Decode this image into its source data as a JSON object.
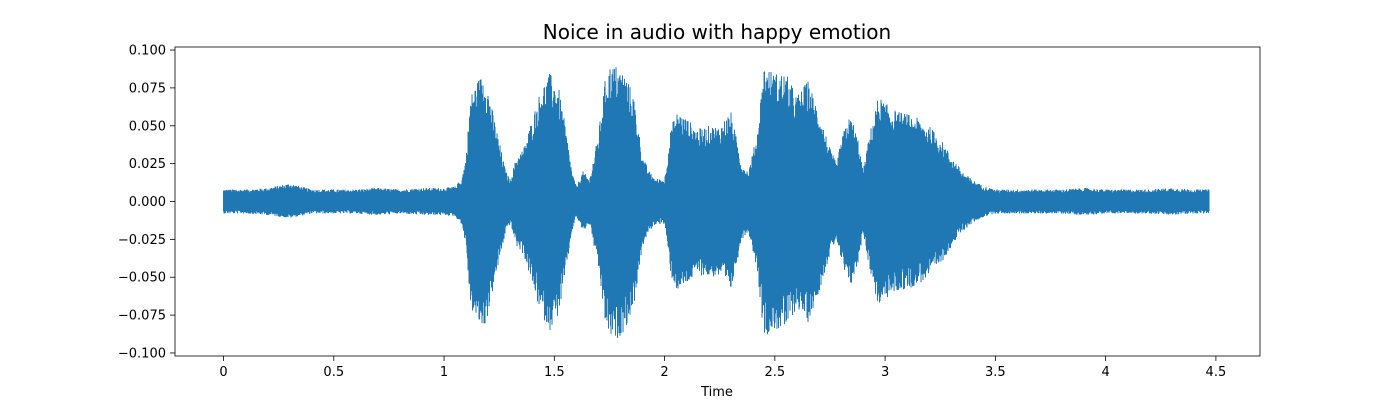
{
  "chart_data": {
    "type": "area",
    "title": "Noice in audio with happy emotion",
    "xlabel": "Time",
    "ylabel": "",
    "xlim": [
      -0.22,
      4.7
    ],
    "ylim": [
      -0.102,
      0.102
    ],
    "xticks": [
      0,
      0.5,
      1,
      1.5,
      2,
      2.5,
      3,
      3.5,
      4,
      4.5
    ],
    "xtick_labels": [
      "0",
      "0.5",
      "1",
      "1.5",
      "2",
      "2.5",
      "3",
      "3.5",
      "4",
      "4.5"
    ],
    "yticks": [
      0.1,
      0.075,
      0.05,
      0.025,
      0.0,
      -0.025,
      -0.05,
      -0.075,
      -0.1
    ],
    "ytick_labels": [
      "0.100",
      "0.075",
      "0.050",
      "0.025",
      "0.000",
      "−0.025",
      "−0.050",
      "−0.075",
      "−0.100"
    ],
    "grid": false,
    "legend": "none",
    "series": [
      {
        "color": "#1f77b4",
        "envelope": {
          "x": [
            0.0,
            0.1,
            0.2,
            0.3,
            0.4,
            0.5,
            0.6,
            0.7,
            0.8,
            0.9,
            1.0,
            1.05,
            1.08,
            1.1,
            1.12,
            1.15,
            1.18,
            1.2,
            1.22,
            1.25,
            1.28,
            1.3,
            1.33,
            1.36,
            1.4,
            1.44,
            1.48,
            1.52,
            1.55,
            1.58,
            1.6,
            1.63,
            1.66,
            1.7,
            1.73,
            1.75,
            1.78,
            1.82,
            1.86,
            1.9,
            1.93,
            1.96,
            2.0,
            2.03,
            2.06,
            2.1,
            2.15,
            2.2,
            2.25,
            2.3,
            2.35,
            2.38,
            2.42,
            2.45,
            2.5,
            2.55,
            2.6,
            2.65,
            2.7,
            2.73,
            2.75,
            2.78,
            2.8,
            2.83,
            2.85,
            2.88,
            2.9,
            2.93,
            2.97,
            3.0,
            3.05,
            3.1,
            3.15,
            3.2,
            3.25,
            3.3,
            3.35,
            3.4,
            3.45,
            3.5,
            3.6,
            3.7,
            3.8,
            3.9,
            4.0,
            4.1,
            4.2,
            4.3,
            4.4,
            4.47
          ],
          "upper": [
            0.008,
            0.008,
            0.009,
            0.012,
            0.008,
            0.008,
            0.008,
            0.009,
            0.008,
            0.009,
            0.009,
            0.01,
            0.015,
            0.03,
            0.07,
            0.08,
            0.085,
            0.075,
            0.06,
            0.04,
            0.02,
            0.015,
            0.03,
            0.035,
            0.055,
            0.075,
            0.085,
            0.075,
            0.05,
            0.02,
            0.01,
            0.02,
            0.015,
            0.045,
            0.08,
            0.09,
            0.09,
            0.085,
            0.07,
            0.03,
            0.02,
            0.015,
            0.015,
            0.05,
            0.06,
            0.055,
            0.048,
            0.05,
            0.05,
            0.06,
            0.025,
            0.02,
            0.045,
            0.09,
            0.085,
            0.085,
            0.07,
            0.08,
            0.06,
            0.045,
            0.035,
            0.025,
            0.04,
            0.055,
            0.055,
            0.04,
            0.02,
            0.045,
            0.07,
            0.065,
            0.06,
            0.058,
            0.055,
            0.05,
            0.042,
            0.03,
            0.02,
            0.014,
            0.01,
            0.008,
            0.008,
            0.008,
            0.008,
            0.009,
            0.008,
            0.008,
            0.008,
            0.009,
            0.008,
            0.008
          ],
          "lower": [
            -0.008,
            -0.008,
            -0.009,
            -0.011,
            -0.008,
            -0.008,
            -0.008,
            -0.009,
            -0.008,
            -0.009,
            -0.009,
            -0.01,
            -0.015,
            -0.03,
            -0.07,
            -0.08,
            -0.085,
            -0.075,
            -0.06,
            -0.04,
            -0.02,
            -0.015,
            -0.03,
            -0.035,
            -0.055,
            -0.075,
            -0.085,
            -0.075,
            -0.05,
            -0.02,
            -0.01,
            -0.02,
            -0.015,
            -0.045,
            -0.08,
            -0.09,
            -0.092,
            -0.085,
            -0.07,
            -0.03,
            -0.02,
            -0.015,
            -0.015,
            -0.05,
            -0.06,
            -0.055,
            -0.048,
            -0.05,
            -0.05,
            -0.06,
            -0.025,
            -0.02,
            -0.045,
            -0.089,
            -0.085,
            -0.085,
            -0.07,
            -0.08,
            -0.06,
            -0.045,
            -0.035,
            -0.025,
            -0.04,
            -0.055,
            -0.055,
            -0.04,
            -0.02,
            -0.045,
            -0.07,
            -0.065,
            -0.06,
            -0.058,
            -0.055,
            -0.05,
            -0.042,
            -0.03,
            -0.02,
            -0.014,
            -0.01,
            -0.008,
            -0.008,
            -0.008,
            -0.008,
            -0.009,
            -0.008,
            -0.008,
            -0.008,
            -0.009,
            -0.008,
            -0.008
          ]
        }
      }
    ]
  }
}
